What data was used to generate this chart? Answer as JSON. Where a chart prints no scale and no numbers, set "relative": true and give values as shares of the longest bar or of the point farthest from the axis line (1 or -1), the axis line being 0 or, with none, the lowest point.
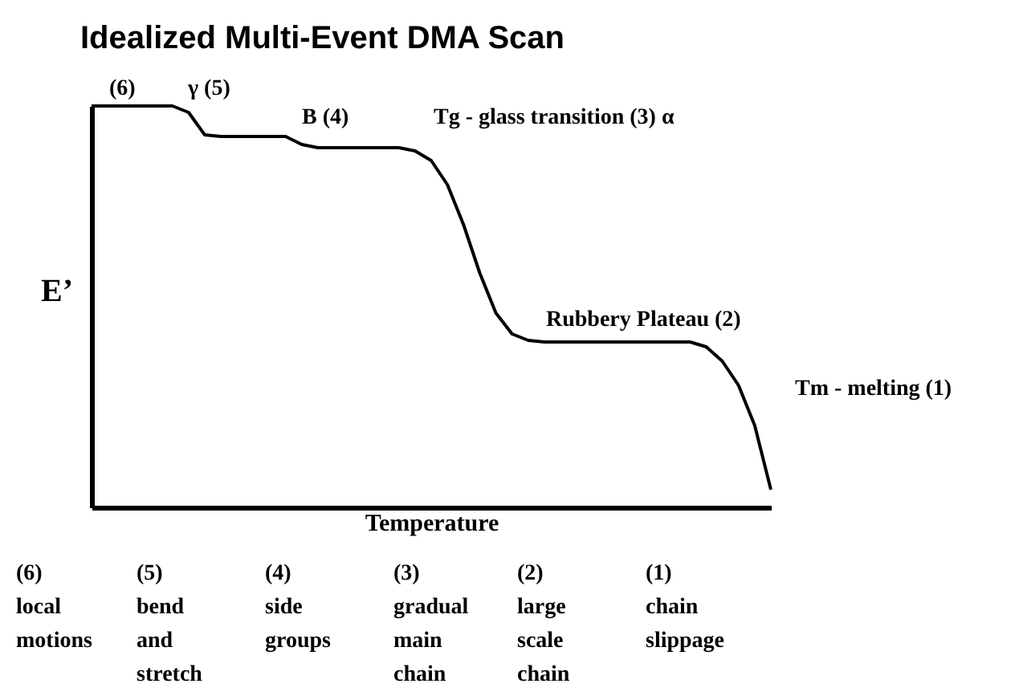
{
  "chart_data": {
    "type": "line",
    "title": "Idealized Multi-Event DMA Scan",
    "xlabel": "Temperature",
    "ylabel": "E’",
    "relative": true,
    "legend": false,
    "grid": false,
    "marker": "none",
    "line_style": "solid",
    "categories": [
      null,
      null,
      null,
      null,
      null,
      null,
      null,
      null,
      null,
      null,
      null,
      null,
      null,
      null,
      null,
      null,
      null,
      null,
      null,
      null,
      null,
      null,
      null,
      null,
      null,
      null,
      null,
      null,
      null,
      null,
      null,
      null,
      null,
      null,
      null,
      null,
      null,
      null,
      null,
      null,
      null,
      null,
      null
    ],
    "series": [
      {
        "color": "#000000",
        "values": [
          1.0,
          1.0,
          1.0,
          1.0,
          1.0,
          1.0,
          0.984,
          0.928,
          0.924,
          0.924,
          0.924,
          0.924,
          0.924,
          0.904,
          0.896,
          0.896,
          0.896,
          0.896,
          0.896,
          0.896,
          0.888,
          0.864,
          0.804,
          0.704,
          0.584,
          0.484,
          0.432,
          0.416,
          0.412,
          0.412,
          0.412,
          0.412,
          0.412,
          0.412,
          0.412,
          0.412,
          0.412,
          0.412,
          0.4,
          0.364,
          0.304,
          0.204,
          0.044
        ]
      }
    ],
    "annotations": [
      "(6)",
      "γ (5)",
      "B (4)",
      "Tg - glass transition (3) α",
      "Rubbery Plateau (2)",
      "Tm - melting (1)",
      "(6)\nlocal\nmotions",
      "(5)\nbend\nand\nstretch",
      "(4)\nside\ngroups",
      "(3)\ngradual\nmain\nchain",
      "(2)\nlarge\nscale\nchain",
      "(1)\nchain\nslippage"
    ]
  }
}
